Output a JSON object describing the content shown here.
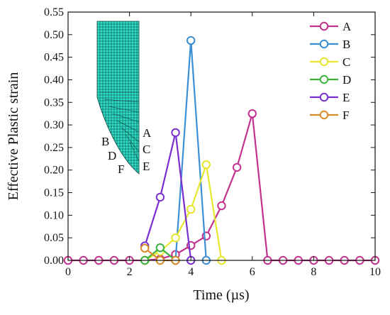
{
  "chart_data": {
    "type": "line",
    "xlabel": "Time (µs)",
    "ylabel": "Effective Plastic strain",
    "xlim": [
      0,
      10
    ],
    "ylim": [
      0,
      0.55
    ],
    "x_ticks": [
      "0",
      "2",
      "4",
      "6",
      "8",
      "10"
    ],
    "y_ticks": [
      "0.00",
      "0.05",
      "0.10",
      "0.15",
      "0.20",
      "0.25",
      "0.30",
      "0.35",
      "0.40",
      "0.45",
      "0.50",
      "0.55"
    ],
    "legend_position": "top-right",
    "grid": false,
    "series": [
      {
        "name": "A",
        "color": "#c2328e",
        "x": [
          0,
          0.5,
          1,
          1.5,
          2,
          2.5,
          3,
          3.5,
          4,
          4.5,
          5,
          5.5,
          6,
          6.5,
          7,
          7.5,
          8,
          8.5,
          9,
          9.5,
          10
        ],
        "y": [
          0,
          0,
          0,
          0,
          0,
          0,
          0.003,
          0.013,
          0.033,
          0.054,
          0.121,
          0.206,
          0.325,
          0,
          0,
          0,
          0,
          0,
          0,
          0,
          0
        ]
      },
      {
        "name": "B",
        "color": "#3b8fd4",
        "x": [
          3.5,
          4,
          4.5
        ],
        "y": [
          0,
          0.487,
          0
        ]
      },
      {
        "name": "C",
        "color": "#e6e62e",
        "x": [
          2.5,
          3,
          3.5,
          4,
          4.5,
          5
        ],
        "y": [
          0,
          0.02,
          0.05,
          0.113,
          0.212,
          0
        ]
      },
      {
        "name": "D",
        "color": "#3cb43c",
        "x": [
          2.5,
          3,
          3.5
        ],
        "y": [
          0,
          0.028,
          0
        ]
      },
      {
        "name": "E",
        "color": "#7a2fd0",
        "x": [
          2.5,
          3,
          3.5,
          4
        ],
        "y": [
          0.032,
          0.14,
          0.283,
          0
        ]
      },
      {
        "name": "F",
        "color": "#d98a2b",
        "x": [
          2.5,
          3,
          3.5
        ],
        "y": [
          0.027,
          0,
          0
        ]
      }
    ],
    "inset": {
      "labels_left": [
        "B",
        "D",
        "F"
      ],
      "labels_right": [
        "A",
        "C",
        "E"
      ],
      "mesh_color": "#2ee0c8"
    }
  }
}
